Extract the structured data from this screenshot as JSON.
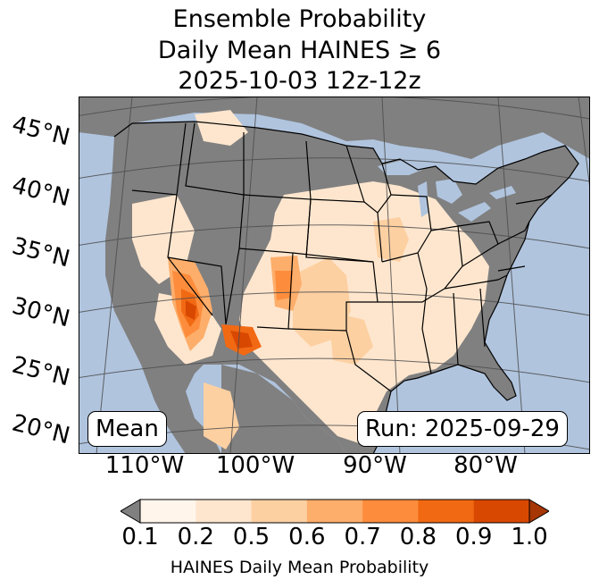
{
  "title": {
    "line1": "Ensemble Probability",
    "line2": "Daily Mean HAINES ≥ 6",
    "line3": "2025-10-03 12z-12z"
  },
  "map": {
    "lat_labels": [
      "45°N",
      "40°N",
      "35°N",
      "30°N",
      "25°N",
      "20°N"
    ],
    "lon_labels": [
      "110°W",
      "100°W",
      "90°W",
      "80°W"
    ],
    "mean_label": "Mean",
    "run_label": "Run: 2025-09-29",
    "colors": {
      "ocean": "#b0c4de",
      "land_no_data": "#808080",
      "borders": "#000000",
      "gridlines": "#4d4d4d"
    }
  },
  "colorbar": {
    "ticks": [
      "0.1",
      "0.2",
      "0.5",
      "0.6",
      "0.7",
      "0.8",
      "0.9",
      "1.0"
    ],
    "colors": [
      "#fff5eb",
      "#fee6ce",
      "#fdd0a2",
      "#fdae6b",
      "#fd8d3c",
      "#f16913",
      "#d94801",
      "#a63603"
    ],
    "under_color": "#808080",
    "label": "HAINES Daily Mean Probability"
  }
}
